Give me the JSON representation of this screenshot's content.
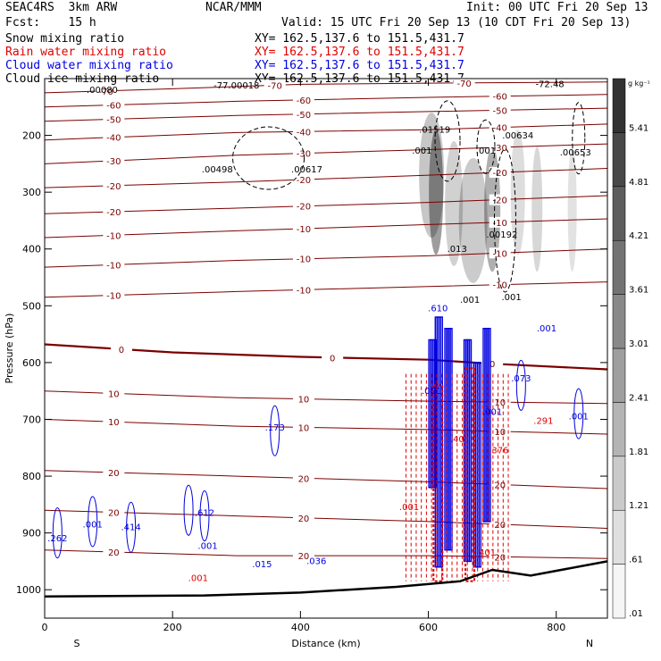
{
  "header": {
    "model": "SEAC4RS  3km ARW",
    "org": "NCAR/MMM",
    "init": "Init: 00 UTC Fri 20 Sep 13",
    "fcst": "Fcst:    15 h",
    "valid": "Valid: 15 UTC Fri 20 Sep 13 (10 CDT Fri 20 Sep 13)",
    "fields": [
      {
        "name": "Snow mixing ratio",
        "xy": "XY= 162.5,137.6 to 151.5,431.7",
        "color": "#000000"
      },
      {
        "name": "Rain water mixing ratio",
        "xy": "XY= 162.5,137.6 to 151.5,431.7",
        "color": "#e00000"
      },
      {
        "name": "Cloud water mixing ratio",
        "xy": "XY= 162.5,137.6 to 151.5,431.7",
        "color": "#0000e0"
      },
      {
        "name": "Cloud ice mixing ratio",
        "xy": "XY= 162.5,137.6 to 151.5,431.7",
        "color": "#000000"
      }
    ]
  },
  "chart_data": {
    "type": "cross-section contour",
    "xlabel": "Distance (km)",
    "ylabel": "Pressure (hPa)",
    "xlim": [
      0,
      880
    ],
    "ylim": [
      1050,
      100
    ],
    "x_ticks": [
      0,
      200,
      400,
      600,
      800
    ],
    "y_ticks": [
      200,
      300,
      400,
      500,
      600,
      700,
      800,
      900,
      1000
    ],
    "x_end_labels": {
      "left": "S",
      "right": "N"
    },
    "colorbar": {
      "unit": "g kg⁻¹",
      "levels": [
        ".01",
        ".61",
        "1.21",
        "1.81",
        "2.41",
        "3.01",
        "3.61",
        "4.21",
        "4.81",
        "5.41"
      ]
    },
    "temperature_contours": [
      {
        "label": "-70",
        "path": [
          [
            0,
            125
          ],
          [
            200,
            118
          ],
          [
            400,
            110
          ],
          [
            600,
            108
          ],
          [
            880,
            106
          ]
        ]
      },
      {
        "label": "-60",
        "path": [
          [
            0,
            150
          ],
          [
            300,
            140
          ],
          [
            600,
            133
          ],
          [
            880,
            128
          ]
        ]
      },
      {
        "label": "-50",
        "path": [
          [
            0,
            175
          ],
          [
            300,
            165
          ],
          [
            600,
            158
          ],
          [
            880,
            152
          ]
        ]
      },
      {
        "label": "-40",
        "path": [
          [
            0,
            208
          ],
          [
            300,
            195
          ],
          [
            600,
            190
          ],
          [
            880,
            180
          ]
        ]
      },
      {
        "label": "-30",
        "path": [
          [
            0,
            250
          ],
          [
            300,
            235
          ],
          [
            600,
            225
          ],
          [
            880,
            215
          ]
        ]
      },
      {
        "label": "-20",
        "path": [
          [
            0,
            292
          ],
          [
            300,
            282
          ],
          [
            600,
            270
          ],
          [
            880,
            258
          ]
        ]
      },
      {
        "label": "-20",
        "path": [
          [
            0,
            338
          ],
          [
            300,
            328
          ],
          [
            600,
            318
          ],
          [
            880,
            306
          ]
        ]
      },
      {
        "label": "-10",
        "path": [
          [
            0,
            380
          ],
          [
            300,
            368
          ],
          [
            600,
            357
          ],
          [
            880,
            347
          ]
        ]
      },
      {
        "label": "-10",
        "path": [
          [
            0,
            432
          ],
          [
            300,
            420
          ],
          [
            600,
            412
          ],
          [
            880,
            400
          ]
        ]
      },
      {
        "label": "-10",
        "path": [
          [
            0,
            485
          ],
          [
            300,
            475
          ],
          [
            600,
            466
          ],
          [
            880,
            458
          ]
        ]
      },
      {
        "label": "0",
        "path": [
          [
            0,
            568
          ],
          [
            200,
            582
          ],
          [
            400,
            590
          ],
          [
            600,
            595
          ],
          [
            700,
            602
          ],
          [
            880,
            612
          ]
        ]
      },
      {
        "label": "10",
        "path": [
          [
            0,
            650
          ],
          [
            300,
            662
          ],
          [
            600,
            668
          ],
          [
            880,
            672
          ]
        ]
      },
      {
        "label": "10",
        "path": [
          [
            0,
            700
          ],
          [
            300,
            712
          ],
          [
            600,
            718
          ],
          [
            880,
            726
          ]
        ]
      },
      {
        "label": "20",
        "path": [
          [
            0,
            790
          ],
          [
            300,
            800
          ],
          [
            600,
            810
          ],
          [
            880,
            822
          ]
        ]
      },
      {
        "label": "20",
        "path": [
          [
            0,
            860
          ],
          [
            300,
            870
          ],
          [
            600,
            880
          ],
          [
            880,
            892
          ]
        ]
      },
      {
        "label": "20",
        "path": [
          [
            0,
            930
          ],
          [
            300,
            940
          ],
          [
            600,
            940
          ],
          [
            880,
            945
          ]
        ]
      }
    ],
    "terrain": [
      [
        0,
        1012
      ],
      [
        250,
        1010
      ],
      [
        400,
        1005
      ],
      [
        550,
        995
      ],
      [
        650,
        985
      ],
      [
        700,
        965
      ],
      [
        760,
        975
      ],
      [
        880,
        950
      ]
    ],
    "cloud_water_max_labels": [
      {
        "x": 20,
        "p": 915,
        "label": ".262"
      },
      {
        "x": 75,
        "p": 890,
        "label": ".001"
      },
      {
        "x": 135,
        "p": 895,
        "label": ".414"
      },
      {
        "x": 250,
        "p": 870,
        "label": ".612"
      },
      {
        "x": 255,
        "p": 928,
        "label": ".001"
      },
      {
        "x": 340,
        "p": 960,
        "label": ".015"
      },
      {
        "x": 360,
        "p": 720,
        "label": ".173"
      },
      {
        "x": 425,
        "p": 955,
        "label": ".036"
      },
      {
        "x": 605,
        "p": 655,
        "label": ".001"
      },
      {
        "x": 615,
        "p": 510,
        "label": ".610"
      },
      {
        "x": 700,
        "p": 692,
        "label": ".001"
      },
      {
        "x": 745,
        "p": 633,
        "label": ".073"
      },
      {
        "x": 785,
        "p": 545,
        "label": ".001"
      },
      {
        "x": 835,
        "p": 700,
        "label": ".001"
      }
    ],
    "rain_water_max_labels": [
      {
        "x": 645,
        "p": 740,
        "label": ".40"
      },
      {
        "x": 710,
        "p": 760,
        "label": ".376"
      },
      {
        "x": 780,
        "p": 708,
        "label": ".291"
      },
      {
        "x": 570,
        "p": 860,
        "label": ".001"
      },
      {
        "x": 690,
        "p": 940,
        "label": ".401"
      },
      {
        "x": 240,
        "p": 985,
        "label": ".001"
      }
    ],
    "ice_snow_max_labels": [
      {
        "x": 90,
        "p": 125,
        "label": ".00080"
      },
      {
        "x": 270,
        "p": 265,
        "label": ".00498"
      },
      {
        "x": 410,
        "p": 265,
        "label": ".00617"
      },
      {
        "x": 610,
        "p": 195,
        "label": ".01519"
      },
      {
        "x": 590,
        "p": 232,
        "label": ".001"
      },
      {
        "x": 690,
        "p": 232,
        "label": ".001"
      },
      {
        "x": 740,
        "p": 205,
        "label": ".00634"
      },
      {
        "x": 830,
        "p": 235,
        "label": ".00653"
      },
      {
        "x": 645,
        "p": 405,
        "label": ".013"
      },
      {
        "x": 715,
        "p": 380,
        "label": ".00192"
      },
      {
        "x": 665,
        "p": 495,
        "label": ".001"
      },
      {
        "x": 730,
        "p": 490,
        "label": ".001"
      },
      {
        "x": 300,
        "p": 117,
        "label": "-77.00018"
      },
      {
        "x": 790,
        "p": 115,
        "label": "-72.48"
      }
    ]
  }
}
